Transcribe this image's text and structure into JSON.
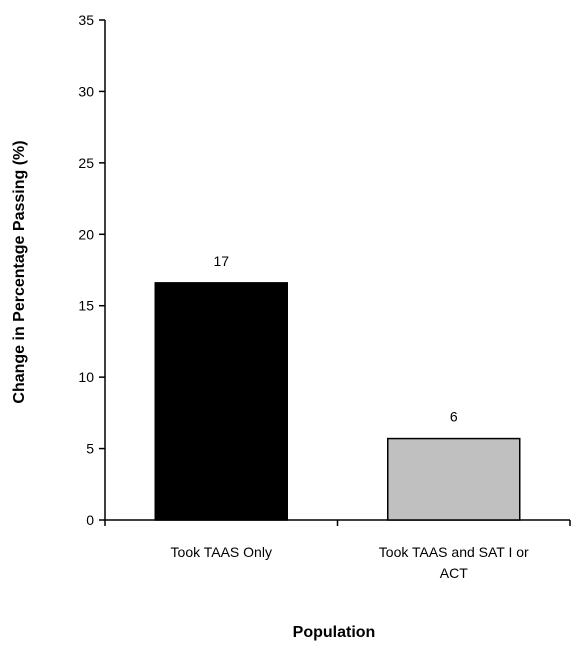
{
  "chart_data": {
    "type": "bar",
    "title": "",
    "xlabel": "Population",
    "ylabel": "Change in Percentage Passing (%)",
    "ylim": [
      0,
      35
    ],
    "yticks": [
      0,
      5,
      10,
      15,
      20,
      25,
      30,
      35
    ],
    "grid": false,
    "categories": [
      [
        "Took TAAS Only"
      ],
      [
        "Took TAAS and SAT I or",
        "ACT"
      ]
    ],
    "values": [
      16.6,
      5.7
    ],
    "data_labels": [
      "17",
      "6"
    ],
    "bar_colors": [
      "#000000",
      "#c0c0c0"
    ]
  }
}
